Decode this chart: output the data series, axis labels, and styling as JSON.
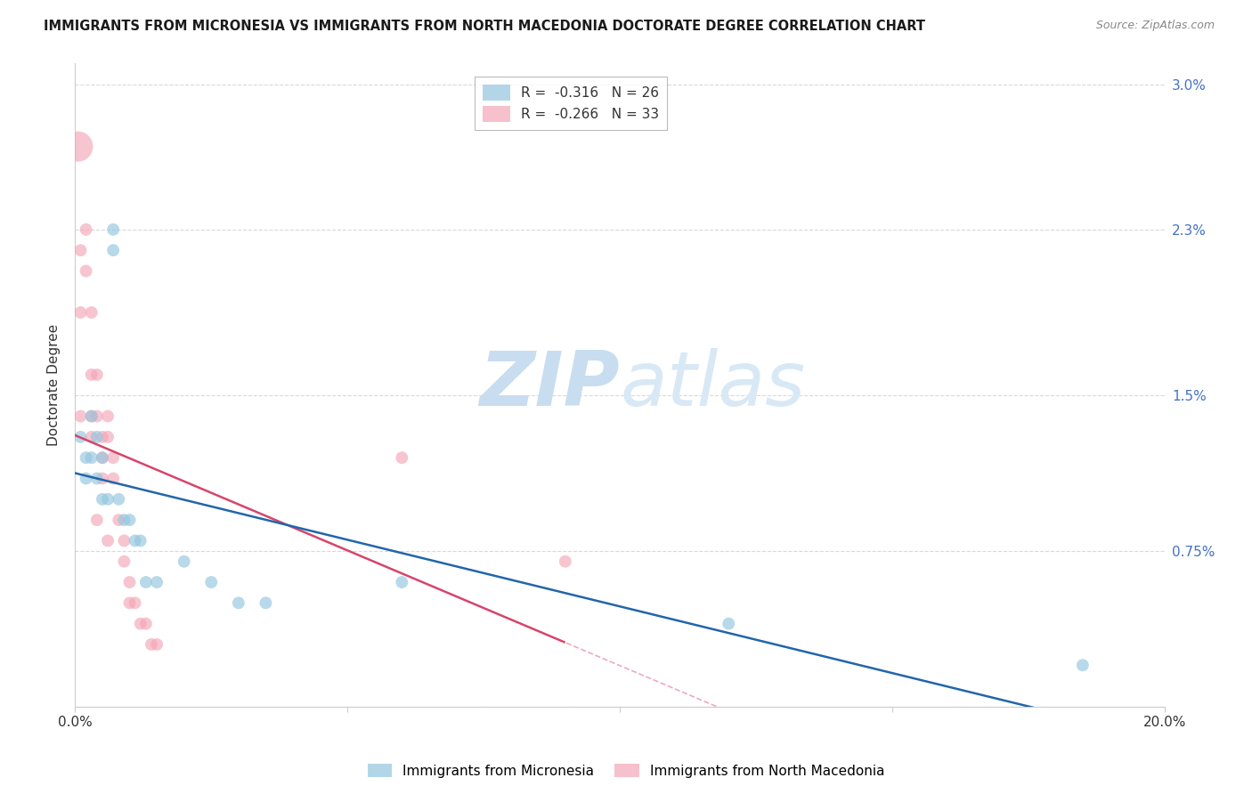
{
  "title": "IMMIGRANTS FROM MICRONESIA VS IMMIGRANTS FROM NORTH MACEDONIA DOCTORATE DEGREE CORRELATION CHART",
  "source": "Source: ZipAtlas.com",
  "ylabel": "Doctorate Degree",
  "xlim": [
    0,
    0.2
  ],
  "ylim": [
    0.0,
    0.031
  ],
  "ytick_vals": [
    0.0,
    0.0075,
    0.015,
    0.023,
    0.03
  ],
  "ytick_labels": [
    "",
    "0.75%",
    "1.5%",
    "2.3%",
    "3.0%"
  ],
  "watermark_zip": "ZIP",
  "watermark_atlas": "atlas",
  "micronesia_color": "#92c5de",
  "macedonia_color": "#f4a6b8",
  "micronesia_line_color": "#2166ac",
  "macedonia_line_color": "#d6456b",
  "micronesia_R": -0.316,
  "micronesia_N": 26,
  "macedonia_R": -0.266,
  "macedonia_N": 33,
  "grid_color": "#d9d9d9",
  "background_color": "#ffffff",
  "micronesia_x": [
    0.001,
    0.002,
    0.002,
    0.003,
    0.003,
    0.004,
    0.004,
    0.005,
    0.005,
    0.006,
    0.007,
    0.007,
    0.008,
    0.009,
    0.01,
    0.011,
    0.012,
    0.013,
    0.015,
    0.02,
    0.025,
    0.03,
    0.035,
    0.06,
    0.12,
    0.185
  ],
  "micronesia_y": [
    0.013,
    0.012,
    0.011,
    0.014,
    0.012,
    0.013,
    0.011,
    0.012,
    0.01,
    0.01,
    0.023,
    0.022,
    0.01,
    0.009,
    0.009,
    0.008,
    0.008,
    0.006,
    0.006,
    0.007,
    0.006,
    0.005,
    0.005,
    0.006,
    0.004,
    0.002
  ],
  "micronesia_sizes": [
    100,
    100,
    100,
    100,
    100,
    100,
    100,
    100,
    100,
    100,
    100,
    100,
    100,
    100,
    100,
    100,
    100,
    100,
    100,
    100,
    100,
    100,
    100,
    100,
    100,
    100
  ],
  "macedonia_x": [
    0.0005,
    0.001,
    0.001,
    0.001,
    0.002,
    0.002,
    0.003,
    0.003,
    0.003,
    0.003,
    0.004,
    0.004,
    0.004,
    0.005,
    0.005,
    0.005,
    0.006,
    0.006,
    0.006,
    0.007,
    0.007,
    0.008,
    0.009,
    0.009,
    0.01,
    0.01,
    0.011,
    0.012,
    0.013,
    0.014,
    0.015,
    0.06,
    0.09
  ],
  "macedonia_y": [
    0.027,
    0.022,
    0.019,
    0.014,
    0.023,
    0.021,
    0.019,
    0.016,
    0.014,
    0.013,
    0.016,
    0.014,
    0.009,
    0.013,
    0.012,
    0.011,
    0.014,
    0.013,
    0.008,
    0.012,
    0.011,
    0.009,
    0.008,
    0.007,
    0.006,
    0.005,
    0.005,
    0.004,
    0.004,
    0.003,
    0.003,
    0.012,
    0.007
  ],
  "macedonia_sizes": [
    600,
    100,
    100,
    100,
    100,
    100,
    100,
    100,
    100,
    100,
    100,
    100,
    100,
    100,
    100,
    100,
    100,
    100,
    100,
    100,
    100,
    100,
    100,
    100,
    100,
    100,
    100,
    100,
    100,
    100,
    100,
    100,
    100
  ]
}
